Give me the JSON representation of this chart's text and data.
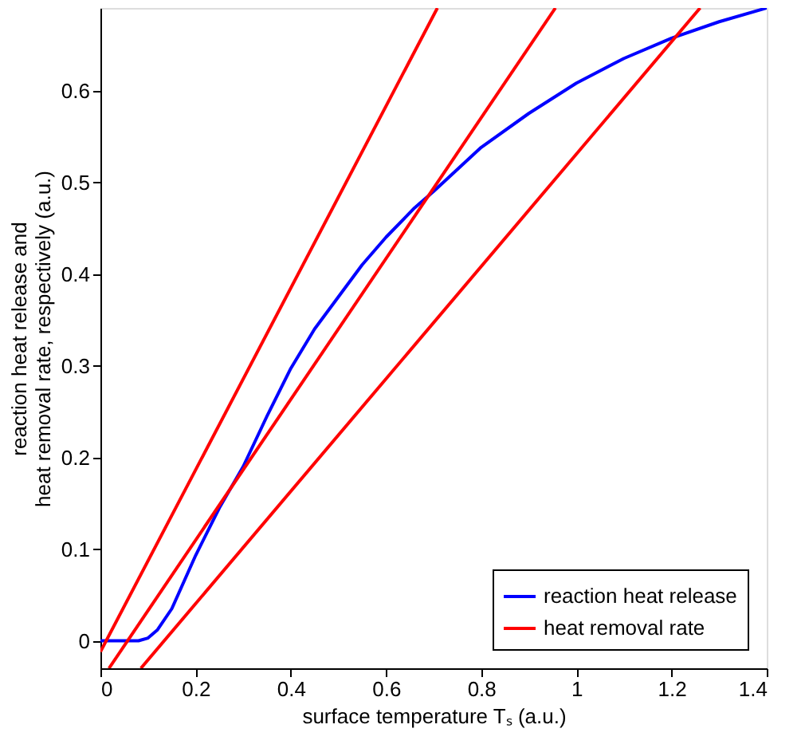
{
  "chart_data": {
    "type": "line",
    "xlabel": "surface temperature Tₛ (a.u.)",
    "ylabel": "reaction heat release and\nheat removal rate, respectively (a.u.)",
    "xlim": [
      0,
      1.4
    ],
    "ylim": [
      -0.03,
      0.69
    ],
    "xticks": [
      0,
      0.2,
      0.4,
      0.6,
      0.8,
      1,
      1.2,
      1.4
    ],
    "yticks": [
      0,
      0.1,
      0.2,
      0.3,
      0.4,
      0.5,
      0.6
    ],
    "grid": false,
    "legend": "bottom right",
    "line_style": "solid",
    "marker": "none",
    "series": [
      {
        "name": "reaction heat release",
        "color": "#0000ff",
        "x": [
          0,
          0.05,
          0.08,
          0.1,
          0.12,
          0.15,
          0.2,
          0.25,
          0.3,
          0.35,
          0.4,
          0.45,
          0.5,
          0.55,
          0.6,
          0.66,
          0.7,
          0.8,
          0.9,
          1.0,
          1.1,
          1.2,
          1.3,
          1.4
        ],
        "values": [
          0,
          0,
          0,
          0.003,
          0.012,
          0.035,
          0.093,
          0.145,
          0.19,
          0.245,
          0.297,
          0.34,
          0.375,
          0.41,
          0.44,
          0.472,
          0.49,
          0.538,
          0.575,
          0.608,
          0.635,
          0.657,
          0.675,
          0.69
        ]
      },
      {
        "name": "heat removal rate",
        "color": "#ff0000",
        "x": [
          0,
          0.708
        ],
        "values": [
          -0.012,
          0.69
        ]
      },
      {
        "color": "#ff0000",
        "x": [
          0.018,
          0.956
        ],
        "values": [
          -0.03,
          0.69
        ]
      },
      {
        "color": "#ff0000",
        "x": [
          0.085,
          1.26
        ],
        "values": [
          -0.03,
          0.69
        ]
      }
    ]
  }
}
